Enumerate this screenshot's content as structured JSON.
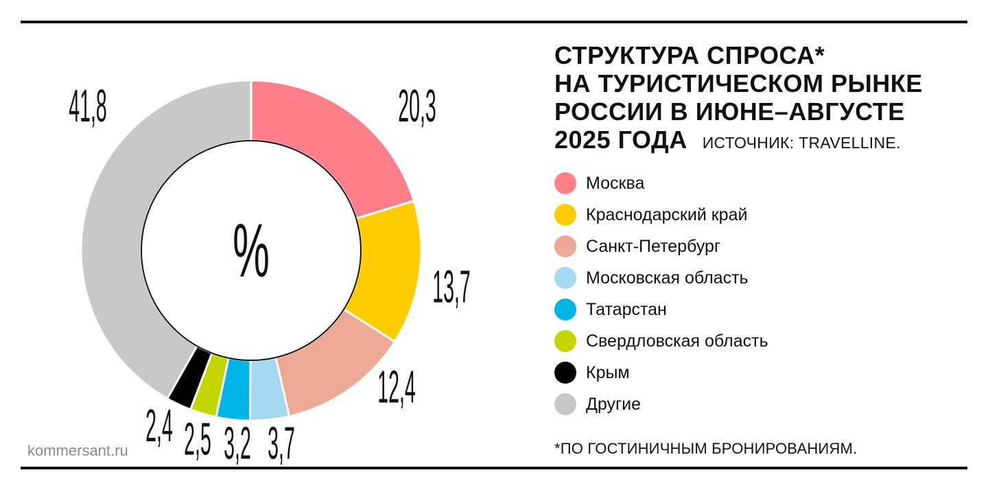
{
  "title_lines": [
    "Структура спроса*",
    "на туристическом рынке",
    "России в июне–августе",
    "2025 года"
  ],
  "source": "Источник: TravelLine.",
  "footnote": "*По гостиничным бронированиям.",
  "brand": "kommersant.ru",
  "center_symbol": "%",
  "chart_data": {
    "type": "pie",
    "unit": "%",
    "categories": [
      "Москва",
      "Краснодарский край",
      "Санкт-Петербург",
      "Московская область",
      "Татарстан",
      "Свердловская область",
      "Крым",
      "Другие"
    ],
    "values": [
      20.3,
      13.7,
      12.4,
      3.7,
      3.2,
      2.5,
      2.4,
      41.8
    ],
    "value_labels": [
      "20,3",
      "13,7",
      "12,4",
      "3,7",
      "3,2",
      "2,5",
      "2,4",
      "41,8"
    ],
    "colors": [
      "#FF808A",
      "#FFCC00",
      "#EDA896",
      "#A7D8F2",
      "#00B4E8",
      "#C4D600",
      "#000000",
      "#C8C8C8"
    ],
    "legend_position": "right"
  }
}
